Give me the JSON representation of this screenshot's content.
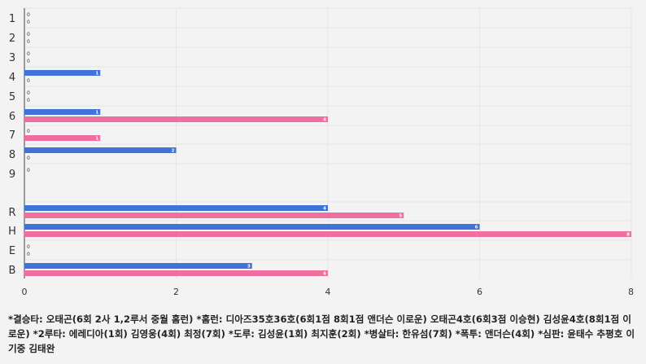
{
  "chart_data": {
    "type": "bar",
    "orientation": "horizontal",
    "categories": [
      "1",
      "2",
      "3",
      "4",
      "5",
      "6",
      "7",
      "8",
      "9",
      "R",
      "H",
      "E",
      "B"
    ],
    "series": [
      {
        "values": [
          0,
          0,
          0,
          1,
          0,
          1,
          0,
          2,
          0,
          4,
          6,
          0,
          3
        ],
        "color": "#3f73d9"
      },
      {
        "values": [
          0,
          0,
          0,
          0,
          0,
          4,
          1,
          0,
          null,
          5,
          8,
          0,
          4
        ],
        "color": "#ef6fa0"
      }
    ],
    "xlim": [
      0,
      8
    ],
    "xticks": [
      0,
      2,
      4,
      6,
      8
    ],
    "grid": true,
    "legend": "none"
  },
  "footnote": "*결승타: 오태곤(6회 2사 1,2루서 중월 홈런) *홈런: 디아즈35호36호(6회1점 8회1점 앤더슨 이로운) 오태곤4호(6회3점 이승현) 김성윤4호(8회1점 이로운) *2루타: 에레디아(1회) 김영웅(4회) 최정(7회) *도루: 김성윤(1회) 최지훈(2회) *병살타: 한유섬(7회) *폭투: 앤더슨(4회) *심판: 윤태수 추평호 이기중 김태완"
}
